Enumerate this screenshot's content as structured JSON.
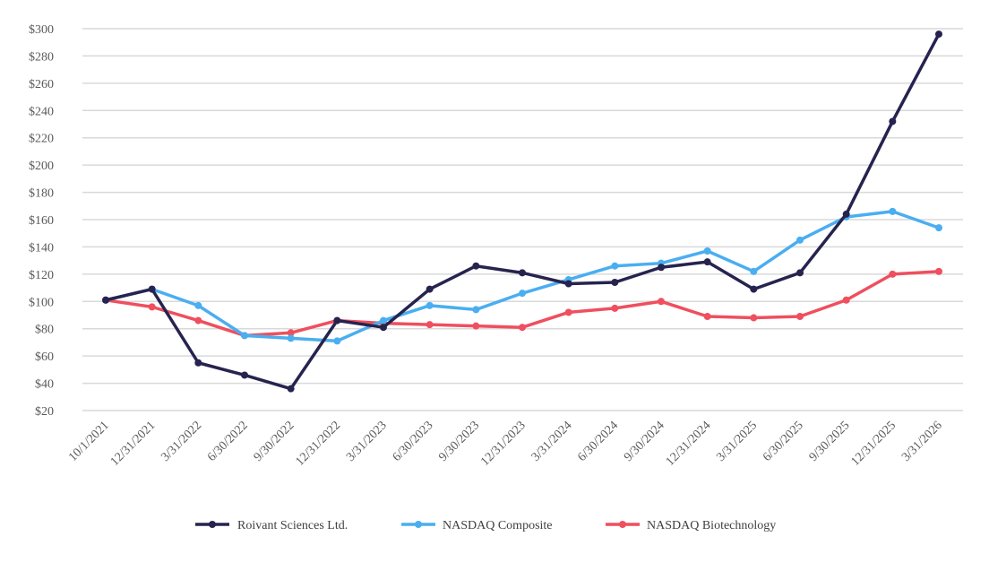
{
  "chart_data": {
    "type": "line",
    "title": "",
    "xlabel": "",
    "ylabel": "",
    "categories": [
      "10/1/2021",
      "12/31/2021",
      "3/31/2022",
      "6/30/2022",
      "9/30/2022",
      "12/31/2022",
      "3/31/2023",
      "6/30/2023",
      "9/30/2023",
      "12/31/2023",
      "3/31/2024",
      "6/30/2024",
      "9/30/2024",
      "12/31/2024",
      "3/31/2025",
      "6/30/2025",
      "9/30/2025",
      "12/31/2025",
      "3/31/2026"
    ],
    "ylim": [
      20,
      300
    ],
    "yticks": [
      20,
      40,
      60,
      80,
      100,
      120,
      140,
      160,
      180,
      200,
      220,
      240,
      260,
      280,
      300
    ],
    "ytick_prefix": "$",
    "grid": true,
    "legend_position": "bottom",
    "series": [
      {
        "name": "Roivant Sciences Ltd.",
        "color": "#27234f",
        "values": [
          101,
          109,
          55,
          46,
          36,
          86,
          81,
          109,
          126,
          121,
          113,
          114,
          125,
          129,
          109,
          121,
          164,
          232,
          296
        ]
      },
      {
        "name": "NASDAQ Composite",
        "color": "#4aaef0",
        "values": [
          101,
          109,
          97,
          75,
          73,
          71,
          86,
          97,
          94,
          106,
          116,
          126,
          128,
          137,
          122,
          145,
          162,
          166,
          154
        ]
      },
      {
        "name": "NASDAQ Biotechnology",
        "color": "#ef4f5e",
        "values": [
          101,
          96,
          86,
          75,
          77,
          86,
          84,
          83,
          82,
          81,
          92,
          95,
          100,
          89,
          88,
          89,
          101,
          120,
          122
        ]
      }
    ]
  }
}
